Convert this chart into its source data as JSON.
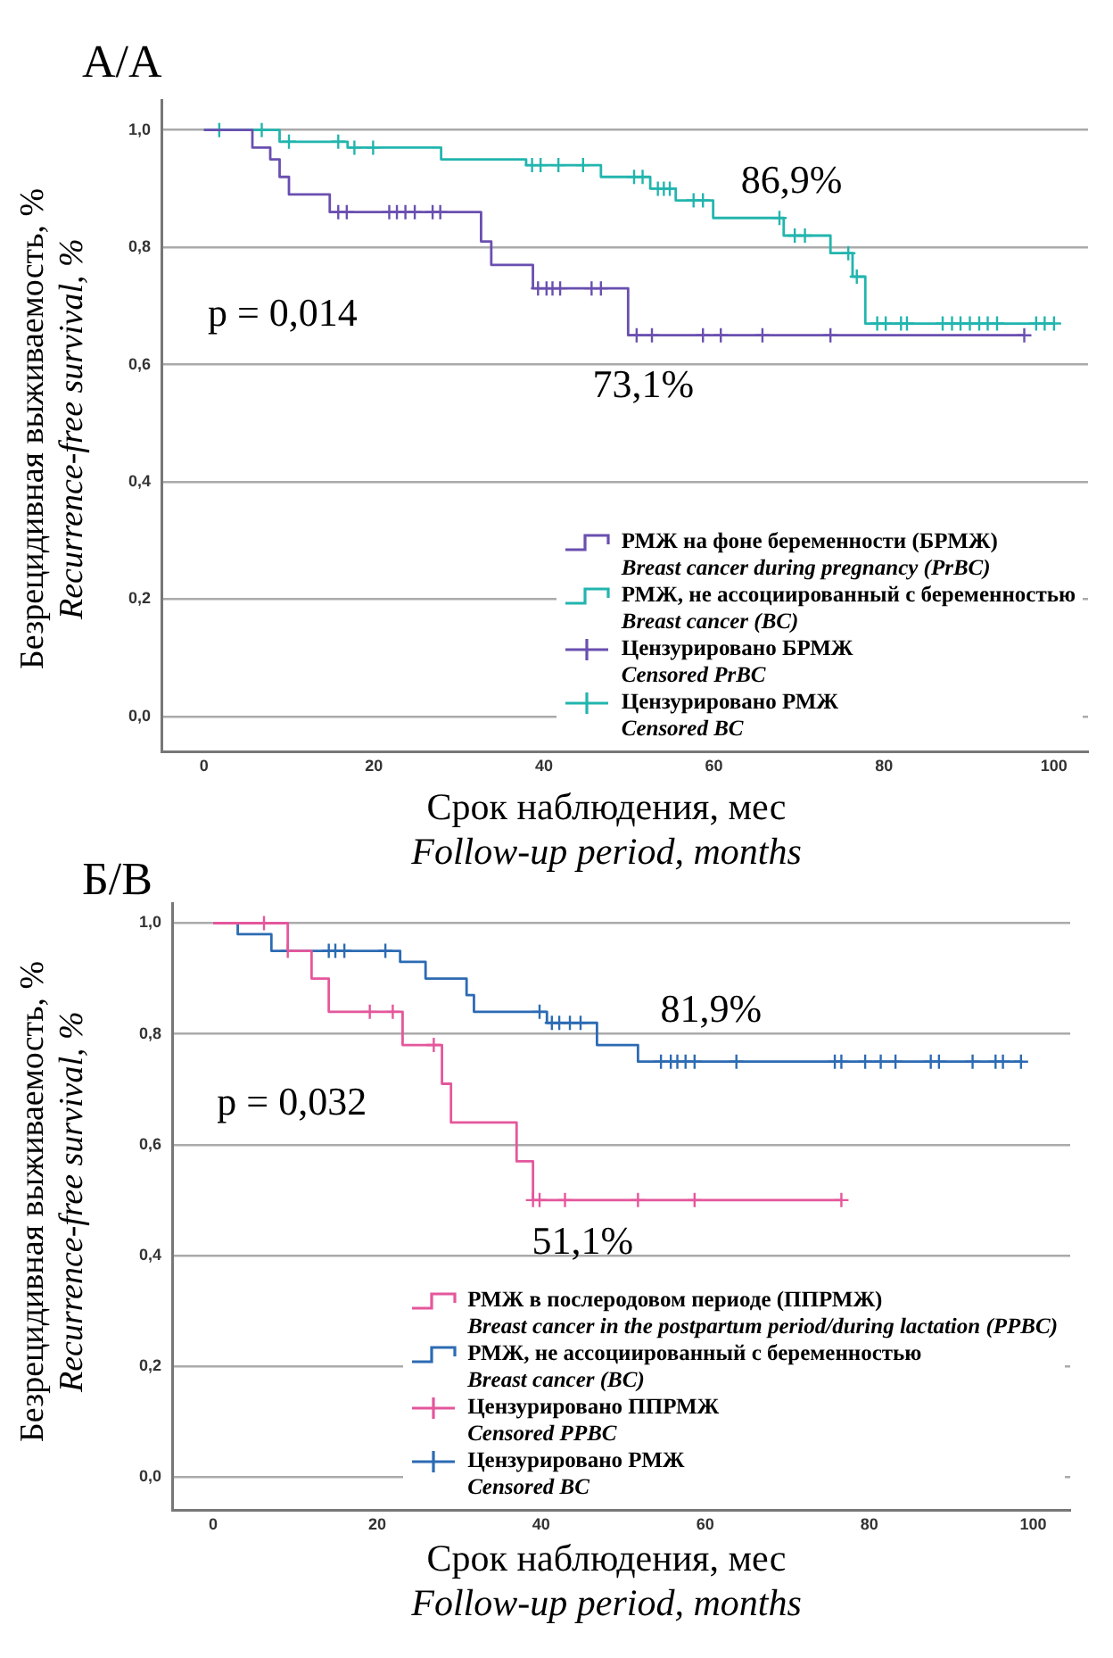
{
  "chart_data": [
    {
      "type": "step",
      "title": "А/А",
      "xlabel": "Срок наблюдения, мес\nFollow-up period, months",
      "ylabel": "Безрецидивная выживаемость, %\nRecurrence-free survival, %",
      "xlim": [
        -5,
        104
      ],
      "xticks": [
        0,
        20,
        40,
        60,
        80,
        100
      ],
      "ylim": [
        -0.06,
        1.05
      ],
      "yticks": [
        {
          "value": 0,
          "label": "0,0"
        },
        {
          "value": 0.2,
          "label": "0,2"
        },
        {
          "value": 0.4,
          "label": "0,4"
        },
        {
          "value": 0.6,
          "label": "0,6"
        },
        {
          "value": 0.8,
          "label": "0,8"
        },
        {
          "value": 1,
          "label": "1,0"
        }
      ],
      "grid": "y",
      "legend": "bottom right",
      "annotations": [
        "p = 0,014",
        "86,9%",
        "73,1%"
      ],
      "series": [
        {
          "name": "РМЖ на фоне беременности (БРМЖ)\nBreast cancer during pregnancy (PrBC)",
          "color": "#6a4fb0",
          "x": [
            0,
            5.7,
            7.8,
            8.9,
            10,
            14.8,
            32.6,
            33.8,
            38.7,
            49.9,
            96.5
          ],
          "values": [
            1,
            0.97,
            0.95,
            0.92,
            0.89,
            0.86,
            0.81,
            0.77,
            0.73,
            0.65,
            0.65
          ]
        },
        {
          "name": "РМЖ, не ассоциированный с беременностью\nBreast cancer (BC)",
          "color": "#22b5ae",
          "x": [
            0,
            8.9,
            16.9,
            27.9,
            37.9,
            46.7,
            52.5,
            55.5,
            59.9,
            68.2,
            73.7,
            76.3,
            77.8,
            100
          ],
          "values": [
            1,
            0.98,
            0.97,
            0.95,
            0.94,
            0.92,
            0.9,
            0.88,
            0.85,
            0.82,
            0.79,
            0.75,
            0.67,
            0.67
          ]
        },
        {
          "name": "Цензурировано БРМЖ\nCensored PrBC",
          "type": "scatter",
          "marker": "cross",
          "color": "#6a4fb0",
          "x": [
            15.8,
            16.8,
            21.8,
            22.7,
            23.7,
            24.8,
            26.9,
            27.8,
            39.3,
            40.3,
            41.0,
            41.9,
            45.6,
            46.7,
            50.9,
            52.7,
            58.7,
            60.8,
            65.7,
            73.7,
            96.5
          ],
          "values": [
            0.86,
            0.86,
            0.86,
            0.86,
            0.86,
            0.86,
            0.86,
            0.86,
            0.73,
            0.73,
            0.73,
            0.73,
            0.73,
            0.73,
            0.65,
            0.65,
            0.65,
            0.65,
            0.65,
            0.65,
            0.65
          ]
        },
        {
          "name": "Цензурировано РМЖ\nCensored BC",
          "type": "scatter",
          "marker": "cross",
          "color": "#22b5ae",
          "x": [
            1.8,
            6.8,
            10,
            15.8,
            17.7,
            19.9,
            38.6,
            39.6,
            41.7,
            44.6,
            50.6,
            51.6,
            53.4,
            54.1,
            54.8,
            57.6,
            58.7,
            67.7,
            69.5,
            70.7,
            75.8,
            76.8,
            79.2,
            80.2,
            82.0,
            82.7,
            86.9,
            88.0,
            89.0,
            90.1,
            91.2,
            92.2,
            93.3,
            97.9,
            98.9,
            100
          ],
          "values": [
            1,
            1,
            0.98,
            0.98,
            0.97,
            0.97,
            0.94,
            0.94,
            0.94,
            0.94,
            0.92,
            0.92,
            0.9,
            0.9,
            0.9,
            0.88,
            0.88,
            0.85,
            0.82,
            0.82,
            0.79,
            0.75,
            0.67,
            0.67,
            0.67,
            0.67,
            0.67,
            0.67,
            0.67,
            0.67,
            0.67,
            0.67,
            0.67,
            0.67,
            0.67,
            0.67
          ]
        }
      ]
    },
    {
      "type": "step",
      "title": "Б/B",
      "xlabel": "Срок наблюдения, мес\nFollow-up period, months",
      "ylabel": "Безрецидивная выживаемость, %\nRecurrence-free survival, %",
      "xlim": [
        -5,
        104.5
      ],
      "xticks": [
        0,
        20,
        40,
        60,
        80,
        100
      ],
      "ylim": [
        -0.06,
        1.035
      ],
      "yticks": [
        {
          "value": 0,
          "label": "0,0"
        },
        {
          "value": 0.2,
          "label": "0,2"
        },
        {
          "value": 0.4,
          "label": "0,4"
        },
        {
          "value": 0.6,
          "label": "0,6"
        },
        {
          "value": 0.8,
          "label": "0,8"
        },
        {
          "value": 1,
          "label": "1,0"
        }
      ],
      "grid": "y",
      "legend": "bottom right",
      "annotations": [
        "p = 0,032",
        "81,9%",
        "51,1%"
      ],
      "series": [
        {
          "name": "РМЖ в послеродовом периоде (ППРМЖ)\nBreast cancer in the postpartum period/during lactation (PPBC)",
          "color": "#e4579c",
          "x": [
            0,
            9.1,
            12.0,
            14.1,
            23.1,
            27.9,
            29.0,
            37.0,
            39.0,
            76.6
          ],
          "values": [
            1,
            0.95,
            0.9,
            0.84,
            0.78,
            0.71,
            0.64,
            0.57,
            0.5,
            0.5
          ]
        },
        {
          "name": "РМЖ, не ассоциированный с беременностью\nBreast cancer (BC)",
          "color": "#2c6bb3",
          "x": [
            0,
            3.0,
            7.1,
            22.8,
            25.9,
            30.9,
            31.8,
            40.7,
            46.8,
            51.8,
            98.7
          ],
          "values": [
            1,
            0.98,
            0.95,
            0.93,
            0.9,
            0.87,
            0.84,
            0.82,
            0.78,
            0.75,
            0.75
          ]
        },
        {
          "name": "Цензурировано ППРМЖ\nCensored PPBC",
          "type": "scatter",
          "marker": "cross",
          "color": "#e4579c",
          "x": [
            6.2,
            9.1,
            19.1,
            21.9,
            26.9,
            39.0,
            39.8,
            42.9,
            51.8,
            58.7,
            76.6
          ],
          "values": [
            1,
            0.95,
            0.84,
            0.84,
            0.78,
            0.5,
            0.5,
            0.5,
            0.5,
            0.5,
            0.5
          ]
        },
        {
          "name": "Цензурировано РМЖ\nCensored BC",
          "type": "scatter",
          "marker": "cross",
          "color": "#2c6bb3",
          "x": [
            14.1,
            14.9,
            16.0,
            21.0,
            39.8,
            41.3,
            42.2,
            43.5,
            44.8,
            54.6,
            55.8,
            56.6,
            57.6,
            58.7,
            63.8,
            75.8,
            76.6,
            79.5,
            81.4,
            83.2,
            87.5,
            88.5,
            92.6,
            95.4,
            96.3,
            98.5
          ],
          "values": [
            0.95,
            0.95,
            0.95,
            0.95,
            0.84,
            0.82,
            0.82,
            0.82,
            0.82,
            0.75,
            0.75,
            0.75,
            0.75,
            0.75,
            0.75,
            0.75,
            0.75,
            0.75,
            0.75,
            0.75,
            0.75,
            0.75,
            0.75,
            0.75,
            0.75,
            0.75
          ]
        }
      ]
    }
  ]
}
